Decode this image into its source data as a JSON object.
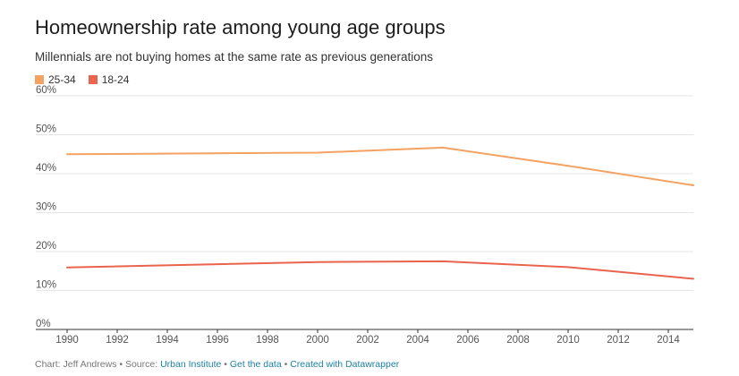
{
  "chart_data": {
    "type": "line",
    "title": "Homeownership rate among young age groups",
    "subtitle": "Millennials are not buying homes at the same rate as previous generations",
    "x": [
      1990,
      2000,
      2005,
      2010,
      2015
    ],
    "series": [
      {
        "name": "25-34",
        "color": "#f4a261",
        "values": [
          45.0,
          45.4,
          46.7,
          42.0,
          37.0
        ]
      },
      {
        "name": "18-24",
        "color": "#e9644e",
        "values": [
          15.9,
          17.3,
          17.5,
          16.0,
          13.0
        ]
      }
    ],
    "x_ticks": [
      "1990",
      "1992",
      "1994",
      "1996",
      "1998",
      "2000",
      "2002",
      "2004",
      "2006",
      "2008",
      "2010",
      "2012",
      "2014"
    ],
    "y_ticks": [
      "0%",
      "10%",
      "20%",
      "30%",
      "40%",
      "50%",
      "60%"
    ],
    "xlim": [
      1990,
      2015
    ],
    "ylim": [
      0,
      60
    ],
    "grid": true,
    "legend": "top-left"
  },
  "footer": {
    "prefix": "Chart: Jeff Andrews • Source: ",
    "source_link": "Urban Institute",
    "sep1": " • ",
    "data_link": "Get the data",
    "sep2": " • ",
    "tool_link": "Created with Datawrapper"
  }
}
